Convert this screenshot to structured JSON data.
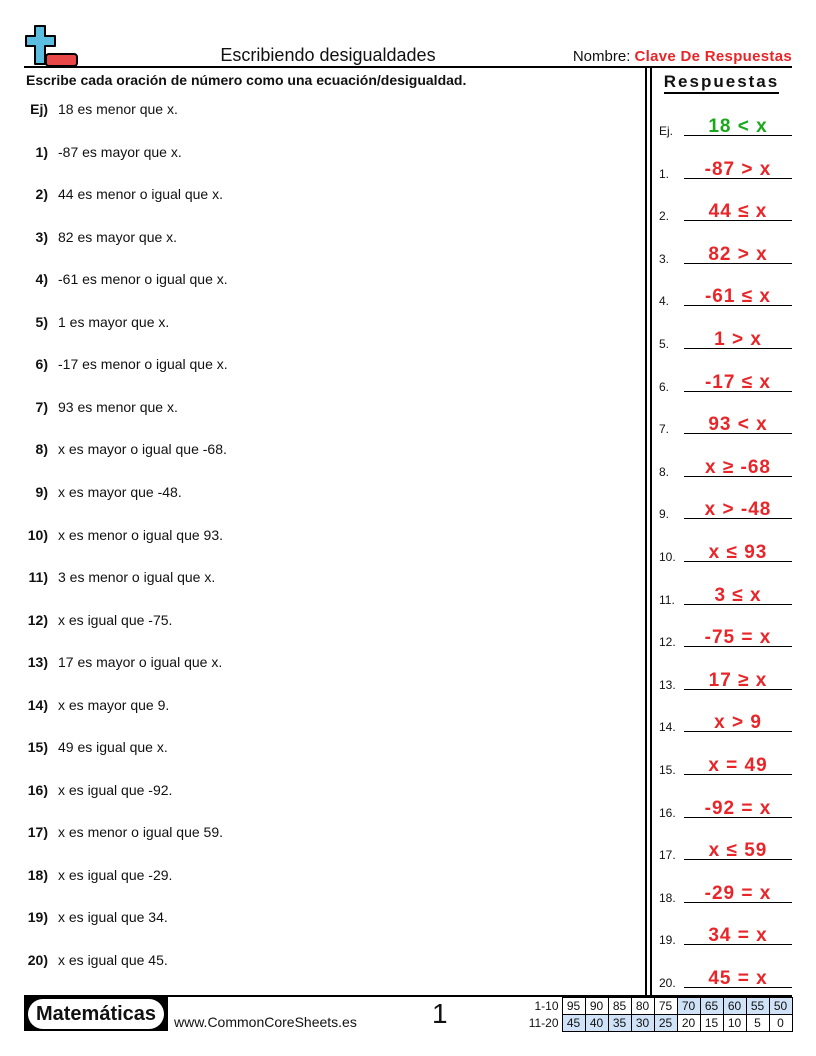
{
  "header": {
    "title": "Escribiendo desigualdades",
    "name_label": "Nombre:",
    "name_value": "Clave De Respuestas",
    "logo": "plus-minus-logo-icon"
  },
  "instructions": "Escribe cada oración de número como una ecuación/desigualdad.",
  "answers_title": "Respuestas",
  "questions": [
    {
      "num": "Ej)",
      "text": "18 es menor que x.",
      "label": "Ej.",
      "answer": "18 < x"
    },
    {
      "num": "1)",
      "text": "-87 es mayor que x.",
      "label": "1.",
      "answer": "-87 > x"
    },
    {
      "num": "2)",
      "text": "44 es menor o igual que x.",
      "label": "2.",
      "answer": "44 ≤ x"
    },
    {
      "num": "3)",
      "text": "82 es mayor que x.",
      "label": "3.",
      "answer": "82 > x"
    },
    {
      "num": "4)",
      "text": "-61 es menor o igual que x.",
      "label": "4.",
      "answer": "-61 ≤ x"
    },
    {
      "num": "5)",
      "text": "1 es mayor que x.",
      "label": "5.",
      "answer": "1 > x"
    },
    {
      "num": "6)",
      "text": "-17 es menor o igual que x.",
      "label": "6.",
      "answer": "-17 ≤ x"
    },
    {
      "num": "7)",
      "text": "93 es menor que x.",
      "label": "7.",
      "answer": "93 < x"
    },
    {
      "num": "8)",
      "text": "x es mayor o igual que -68.",
      "label": "8.",
      "answer": "x ≥ -68"
    },
    {
      "num": "9)",
      "text": "x es mayor que -48.",
      "label": "9.",
      "answer": "x > -48"
    },
    {
      "num": "10)",
      "text": "x es menor o igual que 93.",
      "label": "10.",
      "answer": "x ≤ 93"
    },
    {
      "num": "11)",
      "text": "3 es menor o igual que x.",
      "label": "11.",
      "answer": "3 ≤ x"
    },
    {
      "num": "12)",
      "text": "x es igual que -75.",
      "label": "12.",
      "answer": "-75 = x"
    },
    {
      "num": "13)",
      "text": "17 es mayor o igual que x.",
      "label": "13.",
      "answer": "17 ≥ x"
    },
    {
      "num": "14)",
      "text": "x es mayor que 9.",
      "label": "14.",
      "answer": "x > 9"
    },
    {
      "num": "15)",
      "text": "49 es igual que x.",
      "label": "15.",
      "answer": "x = 49"
    },
    {
      "num": "16)",
      "text": "x es igual que -92.",
      "label": "16.",
      "answer": "-92 = x"
    },
    {
      "num": "17)",
      "text": "x es menor o igual que 59.",
      "label": "17.",
      "answer": "x ≤ 59"
    },
    {
      "num": "18)",
      "text": "x es igual que -29.",
      "label": "18.",
      "answer": "-29 = x"
    },
    {
      "num": "19)",
      "text": "x es igual que 34.",
      "label": "19.",
      "answer": "34 = x"
    },
    {
      "num": "20)",
      "text": "x es igual que 45.",
      "label": "20.",
      "answer": "45 = x"
    }
  ],
  "footer": {
    "subject": "Matemáticas",
    "site": "www.CommonCoreSheets.es",
    "page": "1",
    "score_rows": [
      {
        "label": "1-10",
        "values": [
          "95",
          "90",
          "85",
          "80",
          "75",
          "70",
          "65",
          "60",
          "55",
          "50"
        ],
        "highlight": [
          5,
          6,
          7,
          8,
          9
        ]
      },
      {
        "label": "11-20",
        "values": [
          "45",
          "40",
          "35",
          "30",
          "25",
          "20",
          "15",
          "10",
          "5",
          "0"
        ],
        "highlight": [
          0,
          1,
          2,
          3,
          4
        ]
      }
    ]
  },
  "colors": {
    "answer": "#e8262a",
    "example": "#1aa81a",
    "highlight": "#cfe2f7",
    "logo_plus": "#5bbde0",
    "logo_minus": "#e84848"
  }
}
